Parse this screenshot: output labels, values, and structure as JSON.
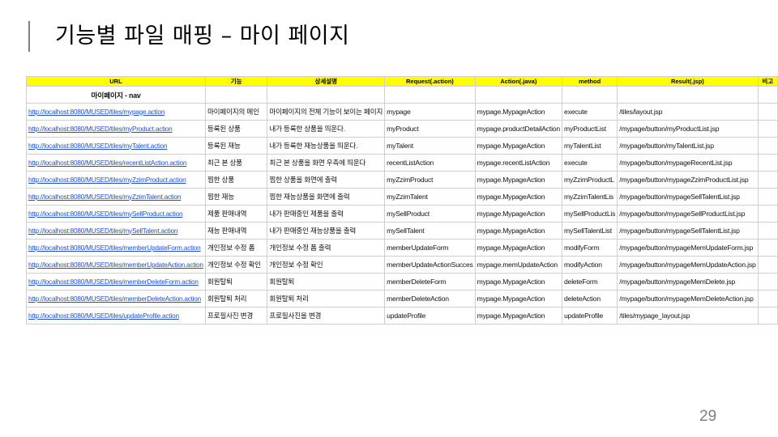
{
  "slide": {
    "title": "기능별 파일 매핑 – 마이 페이지",
    "page_number": "29"
  },
  "table": {
    "headers": [
      "URL",
      "기능",
      "상세설명",
      "Request(.action)",
      "Action(.java)",
      "method",
      "Result(.jsp)",
      "비고"
    ],
    "section": "마이페이지 - nav",
    "rows": [
      [
        "http://localhost:8080/MUSED/tiles/mypage.action",
        "마이페이지의 메인",
        "마이페이지의 전체 기능이 보이는 페이지",
        "mypage",
        "mypage.MypageAction",
        "execute",
        "/tiles/layout.jsp",
        ""
      ],
      [
        "http://localhost:8080/MUSED/tiles/myProduct.action",
        "등록된 상품",
        "내가 등록한 상품을 띄운다.",
        "myProduct",
        "mypage.productDetailAction",
        "myProductList",
        "/mypage/button/myProductList.jsp",
        ""
      ],
      [
        "http://localhost:8080/MUSED/tiles/myTalent.action",
        "등록된 재능",
        "내가 등록한 재능상품을 띄운다.",
        "myTalent",
        "mypage.MypageAction",
        "myTalentList",
        "/mypage/button/myTalentList.jsp",
        ""
      ],
      [
        "http://localhost:8080/MUSED/tiles/recentListAction.action",
        "최근 본 상품",
        "최근 본 상품을 화면 우측에 띄운다",
        "recentListAction",
        "mypage.recentListAction",
        "execute",
        "/mypage/button/mypageRecentList.jsp",
        ""
      ],
      [
        "http://localhost:8080/MUSED/tiles/myZzimProduct.action",
        "찜한 상품",
        "찜한 상품을 화면에 출력",
        "myZzimProduct",
        "mypage.MypageAction",
        "myZzimProductL",
        "/mypage/button/mypageZzimProductList.jsp",
        ""
      ],
      [
        "http://localhost:8080/MUSED/tiles/myZzimTalent.action",
        "찜한 재능",
        "찜한 재능상품을 화면에 출력",
        "myZzimTalent",
        "mypage.MypageAction",
        "myZzimTalentLis",
        "/mypage/button/mypageSellTalentList.jsp",
        ""
      ],
      [
        "http://localhost:8080/MUSED/tiles/mySellProduct.action",
        "제품 판매내역",
        "내가 판매중인 제품을 출력",
        "mySellProduct",
        "mypage.MypageAction",
        "mySellProductLis",
        "/mypage/button/mypageSellProductList.jsp",
        ""
      ],
      [
        "http://localhost:8080/MUSED/tiles/mySellTalent.action",
        "재능 판매내역",
        "내가 판매중인 재능상품을 출력",
        "mySellTalent",
        "mypage.MypageAction",
        "mySellTalentList",
        "/mypage/button/mypageSellTalentList.jsp",
        ""
      ],
      [
        "http://localhost:8080/MUSED/tiles/memberUpdateForm.action",
        "개인정보 수정 폼",
        "개인정보 수정 폼 출력",
        "memberUpdateForm",
        "mypage.MypageAction",
        "modifyForm",
        "/mypage/button/mypageMemUpdateForm.jsp",
        ""
      ],
      [
        "http://localhost:8080/MUSED/tiles/memberUpdateAction.action",
        "개인정보 수정 확인",
        "개인정보 수정 확인",
        "memberUpdateActionSucces",
        "mypage.memUpdateAction",
        "modifyAction",
        "/mypage/button/mypageMemUpdateAction.jsp",
        ""
      ],
      [
        "http://localhost:8080/MUSED/tiles/memberDeleteForm.action",
        "회원탈퇴",
        "회원탈퇴",
        "memberDeleteForm",
        "mypage.MypageAction",
        "deleteForm",
        "/mypage/button/mypageMemDelete.jsp",
        ""
      ],
      [
        "http://localhost:8080/MUSED/tiles/memberDeleteAction.action",
        "회원탈퇴 처리",
        "회원탈퇴 처리",
        "memberDeleteAction",
        "mypage.MypageAction",
        "deleteAction",
        "/mypage/button/mypageMemDeleteAction.jsp",
        ""
      ],
      [
        "http://localhost:8080/MUSED/tiles/updateProfile.action",
        "프로필사진 변경",
        "프로필사진을 변경",
        "updateProfile",
        "mypage.MypageAction",
        "updateProfile",
        "/tiles/mypage_layout.jsp",
        ""
      ]
    ]
  },
  "colors": {
    "header_bg": "#ffff00",
    "link": "#1f4fd1",
    "page_number": "#7f7f7f"
  }
}
